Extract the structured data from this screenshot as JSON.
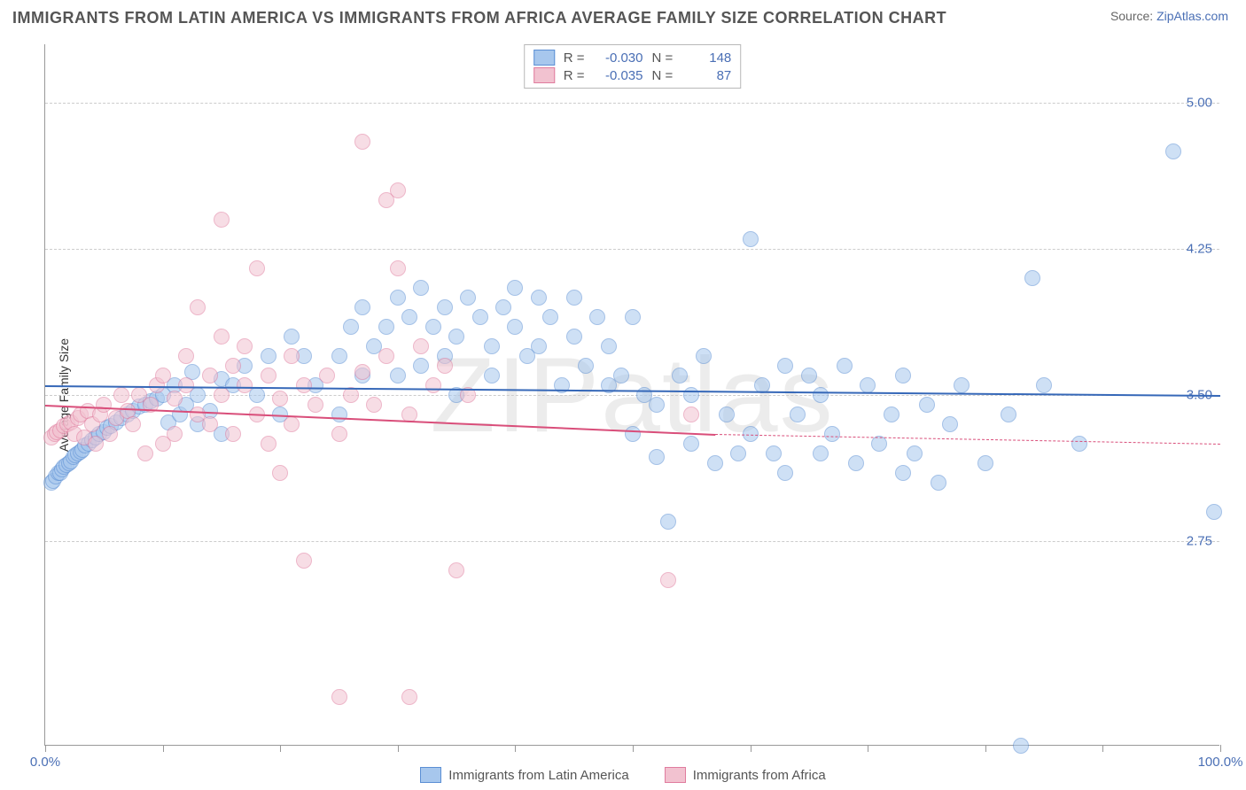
{
  "title": "IMMIGRANTS FROM LATIN AMERICA VS IMMIGRANTS FROM AFRICA AVERAGE FAMILY SIZE CORRELATION CHART",
  "source_label": "Source: ",
  "source_link": "ZipAtlas.com",
  "watermark": "ZIPatlas",
  "ylabel": "Average Family Size",
  "chart": {
    "type": "scatter",
    "xlim": [
      0,
      100
    ],
    "ylim": [
      1.7,
      5.3
    ],
    "x_min_label": "0.0%",
    "x_max_label": "100.0%",
    "y_ticks": [
      2.75,
      3.5,
      4.25,
      5.0
    ],
    "y_tick_labels": [
      "2.75",
      "3.50",
      "4.25",
      "5.00"
    ],
    "x_ticks": [
      0,
      10,
      20,
      30,
      40,
      50,
      60,
      70,
      80,
      90,
      100
    ],
    "grid_color": "#cccccc",
    "background_color": "#ffffff",
    "axis_color": "#999999",
    "tick_label_color": "#4a6fb5",
    "marker_radius": 9,
    "marker_opacity": 0.55
  },
  "series": [
    {
      "name": "Immigrants from Latin America",
      "fill": "#a7c7ed",
      "stroke": "#5b8fd4",
      "line_color": "#3668b8",
      "R": "-0.030",
      "N": "148",
      "regression": {
        "x1": 0,
        "y1": 3.55,
        "x2": 100,
        "y2": 3.5
      },
      "points": [
        [
          0.5,
          3.05
        ],
        [
          0.7,
          3.06
        ],
        [
          0.9,
          3.08
        ],
        [
          1.1,
          3.1
        ],
        [
          1.3,
          3.1
        ],
        [
          1.4,
          3.12
        ],
        [
          1.6,
          3.13
        ],
        [
          1.8,
          3.14
        ],
        [
          2.0,
          3.15
        ],
        [
          2.2,
          3.16
        ],
        [
          2.4,
          3.18
        ],
        [
          2.6,
          3.19
        ],
        [
          2.8,
          3.2
        ],
        [
          3.0,
          3.21
        ],
        [
          3.2,
          3.22
        ],
        [
          3.4,
          3.24
        ],
        [
          3.7,
          3.25
        ],
        [
          4.0,
          3.27
        ],
        [
          4.3,
          3.28
        ],
        [
          4.6,
          3.3
        ],
        [
          5.0,
          3.31
        ],
        [
          5.3,
          3.33
        ],
        [
          5.6,
          3.34
        ],
        [
          6.0,
          3.36
        ],
        [
          6.5,
          3.38
        ],
        [
          7.0,
          3.4
        ],
        [
          7.5,
          3.42
        ],
        [
          8.0,
          3.44
        ],
        [
          8.5,
          3.45
        ],
        [
          9.0,
          3.47
        ],
        [
          9.5,
          3.48
        ],
        [
          10,
          3.5
        ],
        [
          10.5,
          3.36
        ],
        [
          11,
          3.55
        ],
        [
          11.5,
          3.4
        ],
        [
          12,
          3.45
        ],
        [
          12.5,
          3.62
        ],
        [
          13,
          3.35
        ],
        [
          13,
          3.5
        ],
        [
          14,
          3.42
        ],
        [
          15,
          3.58
        ],
        [
          15,
          3.3
        ],
        [
          16,
          3.55
        ],
        [
          17,
          3.65
        ],
        [
          18,
          3.5
        ],
        [
          19,
          3.7
        ],
        [
          20,
          3.4
        ],
        [
          21,
          3.8
        ],
        [
          22,
          3.7
        ],
        [
          23,
          3.55
        ],
        [
          25,
          3.7
        ],
        [
          25,
          3.4
        ],
        [
          26,
          3.85
        ],
        [
          27,
          3.95
        ],
        [
          27,
          3.6
        ],
        [
          28,
          3.75
        ],
        [
          29,
          3.85
        ],
        [
          30,
          3.6
        ],
        [
          30,
          4.0
        ],
        [
          31,
          3.9
        ],
        [
          32,
          3.65
        ],
        [
          32,
          4.05
        ],
        [
          33,
          3.85
        ],
        [
          34,
          3.7
        ],
        [
          34,
          3.95
        ],
        [
          35,
          3.5
        ],
        [
          35,
          3.8
        ],
        [
          36,
          4.0
        ],
        [
          37,
          3.9
        ],
        [
          38,
          3.75
        ],
        [
          38,
          3.6
        ],
        [
          39,
          3.95
        ],
        [
          40,
          4.05
        ],
        [
          40,
          3.85
        ],
        [
          41,
          3.7
        ],
        [
          42,
          4.0
        ],
        [
          42,
          3.75
        ],
        [
          43,
          3.9
        ],
        [
          44,
          3.55
        ],
        [
          45,
          4.0
        ],
        [
          45,
          3.8
        ],
        [
          46,
          3.65
        ],
        [
          47,
          3.9
        ],
        [
          48,
          3.55
        ],
        [
          48,
          3.75
        ],
        [
          49,
          3.6
        ],
        [
          50,
          3.9
        ],
        [
          50,
          3.3
        ],
        [
          51,
          3.5
        ],
        [
          52,
          3.18
        ],
        [
          52,
          3.45
        ],
        [
          53,
          2.85
        ],
        [
          54,
          3.6
        ],
        [
          55,
          3.25
        ],
        [
          55,
          3.5
        ],
        [
          56,
          3.7
        ],
        [
          57,
          3.15
        ],
        [
          58,
          3.4
        ],
        [
          59,
          3.2
        ],
        [
          60,
          4.3
        ],
        [
          60,
          3.3
        ],
        [
          61,
          3.55
        ],
        [
          62,
          3.2
        ],
        [
          63,
          3.65
        ],
        [
          63,
          3.1
        ],
        [
          64,
          3.4
        ],
        [
          65,
          3.6
        ],
        [
          66,
          3.2
        ],
        [
          66,
          3.5
        ],
        [
          67,
          3.3
        ],
        [
          68,
          3.65
        ],
        [
          69,
          3.15
        ],
        [
          70,
          3.55
        ],
        [
          71,
          3.25
        ],
        [
          72,
          3.4
        ],
        [
          73,
          3.6
        ],
        [
          73,
          3.1
        ],
        [
          74,
          3.2
        ],
        [
          75,
          3.45
        ],
        [
          76,
          3.05
        ],
        [
          77,
          3.35
        ],
        [
          78,
          3.55
        ],
        [
          80,
          3.15
        ],
        [
          82,
          3.4
        ],
        [
          83,
          1.7
        ],
        [
          84,
          4.1
        ],
        [
          85,
          3.55
        ],
        [
          88,
          3.25
        ],
        [
          96,
          4.75
        ],
        [
          99.5,
          2.9
        ]
      ]
    },
    {
      "name": "Immigrants from Africa",
      "fill": "#f2c2d0",
      "stroke": "#e07c9e",
      "line_color": "#d94e7a",
      "R": "-0.035",
      "N": "87",
      "regression": {
        "x1": 0,
        "y1": 3.45,
        "x2": 57,
        "y2": 3.3,
        "x3": 100,
        "y3": 3.25
      },
      "points": [
        [
          0.5,
          3.28
        ],
        [
          0.8,
          3.3
        ],
        [
          1.0,
          3.31
        ],
        [
          1.3,
          3.32
        ],
        [
          1.6,
          3.34
        ],
        [
          1.9,
          3.35
        ],
        [
          2.2,
          3.36
        ],
        [
          2.5,
          3.3
        ],
        [
          2.8,
          3.38
        ],
        [
          3.0,
          3.4
        ],
        [
          3.3,
          3.28
        ],
        [
          3.6,
          3.42
        ],
        [
          4.0,
          3.35
        ],
        [
          4.3,
          3.25
        ],
        [
          4.7,
          3.4
        ],
        [
          5.0,
          3.45
        ],
        [
          5.5,
          3.3
        ],
        [
          6.0,
          3.38
        ],
        [
          6.5,
          3.5
        ],
        [
          7.0,
          3.42
        ],
        [
          7.5,
          3.35
        ],
        [
          8.0,
          3.5
        ],
        [
          8.5,
          3.2
        ],
        [
          9.0,
          3.45
        ],
        [
          9.5,
          3.55
        ],
        [
          10,
          3.6
        ],
        [
          10,
          3.25
        ],
        [
          11,
          3.48
        ],
        [
          11,
          3.3
        ],
        [
          12,
          3.55
        ],
        [
          12,
          3.7
        ],
        [
          13,
          3.4
        ],
        [
          13,
          3.95
        ],
        [
          14,
          3.6
        ],
        [
          14,
          3.35
        ],
        [
          15,
          3.8
        ],
        [
          15,
          3.5
        ],
        [
          15,
          4.4
        ],
        [
          16,
          3.65
        ],
        [
          16,
          3.3
        ],
        [
          17,
          3.55
        ],
        [
          17,
          3.75
        ],
        [
          18,
          3.4
        ],
        [
          18,
          4.15
        ],
        [
          19,
          3.6
        ],
        [
          19,
          3.25
        ],
        [
          20,
          3.48
        ],
        [
          20,
          3.1
        ],
        [
          21,
          3.7
        ],
        [
          21,
          3.35
        ],
        [
          22,
          3.55
        ],
        [
          22,
          2.65
        ],
        [
          23,
          3.45
        ],
        [
          24,
          3.6
        ],
        [
          25,
          3.3
        ],
        [
          25,
          1.95
        ],
        [
          26,
          3.5
        ],
        [
          27,
          3.62
        ],
        [
          27,
          4.8
        ],
        [
          28,
          3.45
        ],
        [
          29,
          3.7
        ],
        [
          29,
          4.5
        ],
        [
          30,
          4.55
        ],
        [
          30,
          4.15
        ],
        [
          31,
          3.4
        ],
        [
          31,
          1.95
        ],
        [
          32,
          3.75
        ],
        [
          33,
          3.55
        ],
        [
          34,
          3.65
        ],
        [
          35,
          2.6
        ],
        [
          36,
          3.5
        ],
        [
          53,
          2.55
        ],
        [
          55,
          3.4
        ]
      ]
    }
  ],
  "bottom_legend": {
    "item1": "Immigrants from Latin America",
    "item2": "Immigrants from Africa"
  },
  "stat_legend": {
    "R_label": "R =",
    "N_label": "N ="
  }
}
